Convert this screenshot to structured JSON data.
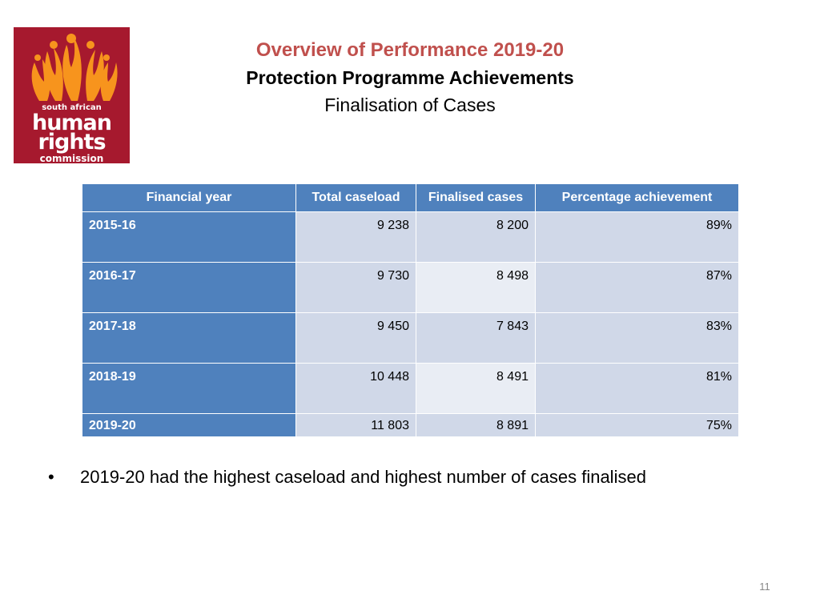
{
  "logo": {
    "line1": "south african",
    "line2": "human",
    "line3": "rights",
    "line4": "commission",
    "colors": {
      "background": "#a6192e",
      "flame": "#f7941d"
    }
  },
  "header": {
    "title": "Overview of Performance 2019-20",
    "subtitle": "Protection Programme Achievements",
    "section": "Finalisation of Cases"
  },
  "table": {
    "columns": [
      "Financial year",
      "Total caseload",
      "Finalised cases",
      "Percentage achievement"
    ],
    "rows": [
      [
        "2015-16",
        "9 238",
        "8 200",
        "89%"
      ],
      [
        "2016-17",
        "9 730",
        "8 498",
        "87%"
      ],
      [
        "2017-18",
        "9 450",
        "7 843",
        "83%"
      ],
      [
        "2018-19",
        "10 448",
        "8 491",
        "81%"
      ],
      [
        "2019-20",
        "11 803",
        "8 891",
        "75%"
      ]
    ],
    "colors": {
      "header": "#4f81bd",
      "band_dark": "#d0d8e8",
      "band_light": "#e9edf4"
    }
  },
  "bullets": [
    "2019-20 had the highest caseload and highest number of cases finalised"
  ],
  "bullet_glyph": "•",
  "page_number": "11"
}
